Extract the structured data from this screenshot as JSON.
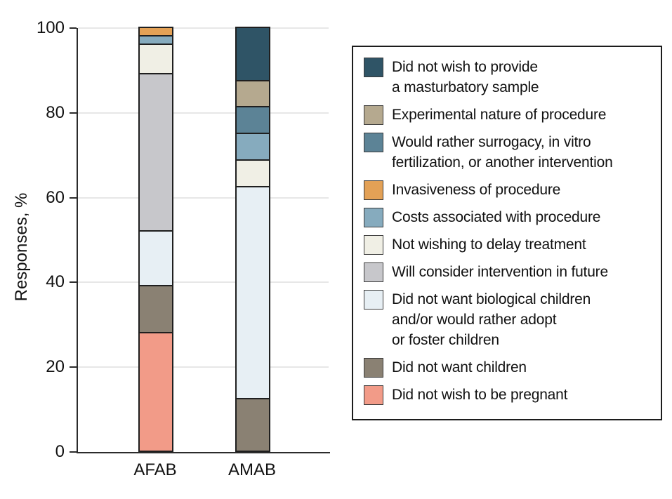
{
  "figure": {
    "y_axis_label": "Responses, %",
    "y_tick_labels": [
      "100",
      "80",
      "60",
      "40",
      "20",
      "0"
    ],
    "x_category_labels": [
      "AFAB",
      "AMAB"
    ]
  },
  "colors": {
    "pregnant": "#F29B88",
    "children": "#8A8173",
    "biological": "#E7EFF4",
    "consider": "#C7C7CB",
    "delay": "#F0EFE5",
    "costs": "#86ABBE",
    "invasiveness": "#E3A156",
    "surrogacy": "#5C8396",
    "experimental": "#B5A98F",
    "masturbatory_sample": "#2F5466",
    "axis": "#2b2b2b",
    "gridline": "#e7e7e7",
    "segment_border": "#1f1f1f"
  },
  "legend": {
    "items": [
      {
        "id": "masturbatory_sample",
        "label": "Did not wish to provide\na masturbatory sample"
      },
      {
        "id": "experimental",
        "label": "Experimental nature of procedure"
      },
      {
        "id": "surrogacy",
        "label": "Would rather surrogacy, in vitro\nfertilization, or another intervention"
      },
      {
        "id": "invasiveness",
        "label": "Invasiveness of procedure"
      },
      {
        "id": "costs",
        "label": "Costs associated with procedure"
      },
      {
        "id": "delay",
        "label": "Not wishing to delay treatment"
      },
      {
        "id": "consider",
        "label": "Will consider intervention in future"
      },
      {
        "id": "biological",
        "label": "Did not want biological children\nand/or would rather adopt\nor foster children"
      },
      {
        "id": "children",
        "label": "Did not want children"
      },
      {
        "id": "pregnant",
        "label": "Did not wish to be pregnant"
      }
    ]
  },
  "chart_data": {
    "type": "bar",
    "stacked": true,
    "title": "",
    "xlabel": "",
    "ylabel": "Responses, %",
    "ylim": [
      0,
      100
    ],
    "yticks": [
      0,
      20,
      40,
      60,
      80,
      100
    ],
    "grid": "horizontal",
    "legend_position": "right",
    "categories": [
      "AFAB",
      "AMAB"
    ],
    "series": [
      {
        "id": "pregnant",
        "name": "Did not wish to be pregnant",
        "values": [
          28,
          0
        ]
      },
      {
        "id": "children",
        "name": "Did not want children",
        "values": [
          11,
          12.5
        ]
      },
      {
        "id": "biological",
        "name": "Did not want biological children and/or would rather adopt or foster children",
        "values": [
          13,
          50
        ]
      },
      {
        "id": "consider",
        "name": "Will consider intervention in future",
        "values": [
          37,
          0
        ]
      },
      {
        "id": "delay",
        "name": "Not wishing to delay treatment",
        "values": [
          7,
          6.25
        ]
      },
      {
        "id": "costs",
        "name": "Costs associated with procedure",
        "values": [
          2,
          6.25
        ]
      },
      {
        "id": "invasiveness",
        "name": "Invasiveness of procedure",
        "values": [
          2,
          0
        ]
      },
      {
        "id": "surrogacy",
        "name": "Would rather surrogacy, in vitro fertilization, or another intervention",
        "values": [
          0,
          6.25
        ]
      },
      {
        "id": "experimental",
        "name": "Experimental nature of procedure",
        "values": [
          0,
          6.25
        ]
      },
      {
        "id": "masturbatory_sample",
        "name": "Did not wish to provide a masturbatory sample",
        "values": [
          0,
          12.5
        ]
      }
    ]
  }
}
